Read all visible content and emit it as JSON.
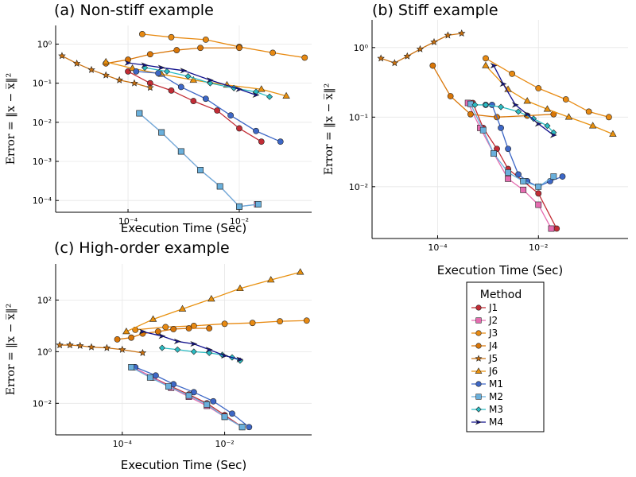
{
  "legend": {
    "title": "Method",
    "entries": [
      "J1",
      "J2",
      "J3",
      "J4",
      "J5",
      "J6",
      "M1",
      "M2",
      "M3",
      "M4"
    ]
  },
  "series_styles": {
    "J1": {
      "color": "#c22c35",
      "marker": "circle"
    },
    "J2": {
      "color": "#e56cb0",
      "marker": "square"
    },
    "J3": {
      "color": "#e88a12",
      "marker": "circle"
    },
    "J4": {
      "color": "#d97608",
      "marker": "circle"
    },
    "J5": {
      "color": "#c87010",
      "marker": "star"
    },
    "J6": {
      "color": "#e8900e",
      "marker": "triangle"
    },
    "M1": {
      "color": "#3d67c6",
      "marker": "circle"
    },
    "M2": {
      "color": "#6ab0dc",
      "marker": "square"
    },
    "M3": {
      "color": "#2bbcc3",
      "marker": "diamond"
    },
    "M4": {
      "color": "#10108c",
      "marker": "arrow"
    }
  },
  "chart_data": [
    {
      "type": "line",
      "title": "(a) Non-stiff example",
      "xlabel": "Execution Time (Sec)",
      "ylabel": "Error = ‖x − x̅‖²",
      "xscale": "log",
      "yscale": "log",
      "xlim": [
        5e-06,
        0.2
      ],
      "ylim": [
        5e-05,
        3
      ],
      "xticks": [
        0.0001,
        0.01
      ],
      "xtick_labels": [
        "10⁻⁴",
        "10⁻²"
      ],
      "yticks": [
        0.0001,
        0.001,
        0.01,
        0.1,
        1
      ],
      "ytick_labels": [
        "10⁻⁴",
        "10⁻³",
        "10⁻²",
        "10⁻¹",
        "10⁰"
      ],
      "grid": true,
      "series": [
        {
          "name": "J1",
          "x": [
            0.0001,
            0.00025,
            0.0006,
            0.0015,
            0.004,
            0.01,
            0.025
          ],
          "y": [
            0.2,
            0.1,
            0.065,
            0.035,
            0.02,
            0.007,
            0.0032
          ]
        },
        {
          "name": "J2",
          "x": [
            0.00016,
            0.0004,
            0.0009,
            0.002,
            0.0045,
            0.01,
            0.021
          ],
          "y": [
            0.017,
            0.0055,
            0.0018,
            0.0006,
            0.00023,
            7e-05,
            8e-05
          ]
        },
        {
          "name": "J3",
          "x": [
            0.00018,
            0.0006,
            0.0025,
            0.01,
            0.04,
            0.15
          ],
          "y": [
            1.8,
            1.5,
            1.3,
            0.85,
            0.6,
            0.45
          ]
        },
        {
          "name": "J4",
          "x": [
            4e-05,
            0.0001,
            0.00025,
            0.00075,
            0.002,
            0.01
          ],
          "y": [
            0.32,
            0.4,
            0.55,
            0.7,
            0.8,
            0.8
          ]
        },
        {
          "name": "J5",
          "x": [
            6.5e-06,
            1.2e-05,
            2.2e-05,
            4e-05,
            7e-05,
            0.00013,
            0.00025
          ],
          "y": [
            0.5,
            0.32,
            0.22,
            0.16,
            0.12,
            0.1,
            0.077
          ]
        },
        {
          "name": "J6",
          "x": [
            4e-05,
            0.00012,
            0.0004,
            0.0015,
            0.006,
            0.025,
            0.07
          ],
          "y": [
            0.35,
            0.24,
            0.17,
            0.12,
            0.09,
            0.07,
            0.047
          ]
        },
        {
          "name": "M1",
          "x": [
            0.00014,
            0.00035,
            0.0009,
            0.0025,
            0.007,
            0.02,
            0.055
          ],
          "y": [
            0.2,
            0.18,
            0.08,
            0.04,
            0.015,
            0.006,
            0.0032
          ]
        },
        {
          "name": "M2",
          "x": [
            0.00016,
            0.0004,
            0.0009,
            0.002,
            0.0045,
            0.01,
            0.022
          ],
          "y": [
            0.017,
            0.0055,
            0.0018,
            0.0006,
            0.00023,
            7e-05,
            8e-05
          ]
        },
        {
          "name": "M3",
          "x": [
            0.0002,
            0.0005,
            0.0012,
            0.003,
            0.008,
            0.02,
            0.035
          ],
          "y": [
            0.25,
            0.2,
            0.15,
            0.1,
            0.075,
            0.06,
            0.045
          ]
        },
        {
          "name": "M4",
          "x": [
            0.0001,
            0.0002,
            0.0004,
            0.001,
            0.003,
            0.01,
            0.02
          ],
          "y": [
            0.33,
            0.29,
            0.25,
            0.21,
            0.12,
            0.07,
            0.05
          ]
        }
      ]
    },
    {
      "type": "line",
      "title": "(b) Stiff example",
      "xlabel": "Execution Time (Sec)",
      "ylabel": "Error = ‖x − x̅‖²",
      "xscale": "log",
      "yscale": "log",
      "xlim": [
        5e-06,
        0.6
      ],
      "ylim": [
        0.0018,
        2.5
      ],
      "xticks": [
        0.0001,
        0.01
      ],
      "xtick_labels": [
        "10⁻⁴",
        "10⁻²"
      ],
      "yticks": [
        0.01,
        0.1,
        1
      ],
      "ytick_labels": [
        "10⁻²",
        "10⁻¹",
        "10⁰"
      ],
      "grid": true,
      "series": [
        {
          "name": "J1",
          "x": [
            0.0005,
            0.0008,
            0.0015,
            0.0025,
            0.005,
            0.01,
            0.023
          ],
          "y": [
            0.16,
            0.07,
            0.035,
            0.018,
            0.012,
            0.008,
            0.0025
          ]
        },
        {
          "name": "J2",
          "x": [
            0.0004,
            0.0007,
            0.0013,
            0.0025,
            0.005,
            0.01,
            0.018
          ],
          "y": [
            0.16,
            0.07,
            0.03,
            0.013,
            0.009,
            0.0055,
            0.0025
          ]
        },
        {
          "name": "J3",
          "x": [
            0.0009,
            0.003,
            0.01,
            0.035,
            0.1,
            0.25
          ],
          "y": [
            0.7,
            0.42,
            0.26,
            0.18,
            0.12,
            0.1
          ]
        },
        {
          "name": "J4",
          "x": [
            8e-05,
            0.00018,
            0.00045,
            0.0015,
            0.006,
            0.02
          ],
          "y": [
            0.55,
            0.2,
            0.11,
            0.1,
            0.105,
            0.11
          ]
        },
        {
          "name": "J5",
          "x": [
            7.5e-06,
            1.4e-05,
            2.5e-05,
            4.5e-05,
            8.5e-05,
            0.00016,
            0.0003
          ],
          "y": [
            0.7,
            0.6,
            0.75,
            0.95,
            1.2,
            1.5,
            1.6
          ]
        },
        {
          "name": "J6",
          "x": [
            0.0009,
            0.0025,
            0.006,
            0.015,
            0.04,
            0.12,
            0.3
          ],
          "y": [
            0.55,
            0.25,
            0.17,
            0.13,
            0.1,
            0.075,
            0.057
          ]
        },
        {
          "name": "M1",
          "x": [
            0.0009,
            0.0012,
            0.0018,
            0.0025,
            0.004,
            0.006,
            0.01,
            0.017,
            0.03
          ],
          "y": [
            0.15,
            0.15,
            0.07,
            0.035,
            0.015,
            0.012,
            0.01,
            0.012,
            0.014
          ]
        },
        {
          "name": "M2",
          "x": [
            0.00045,
            0.0008,
            0.0013,
            0.0025,
            0.005,
            0.01,
            0.02
          ],
          "y": [
            0.155,
            0.065,
            0.03,
            0.016,
            0.012,
            0.01,
            0.014
          ]
        },
        {
          "name": "M3",
          "x": [
            0.00055,
            0.0009,
            0.0018,
            0.004,
            0.008,
            0.015,
            0.02
          ],
          "y": [
            0.15,
            0.15,
            0.14,
            0.12,
            0.095,
            0.075,
            0.06
          ]
        },
        {
          "name": "M4",
          "x": [
            0.0013,
            0.002,
            0.0035,
            0.006,
            0.01,
            0.02
          ],
          "y": [
            0.55,
            0.3,
            0.15,
            0.11,
            0.08,
            0.055
          ]
        }
      ]
    },
    {
      "type": "line",
      "title": "(c) High-order example",
      "xlabel": "Execution Time (Sec)",
      "ylabel": "Error = ‖x − x̅‖²",
      "xscale": "log",
      "yscale": "log",
      "xlim": [
        5e-06,
        0.5
      ],
      "ylim": [
        0.0006,
        2500
      ],
      "xticks": [
        0.0001,
        0.01
      ],
      "xtick_labels": [
        "10⁻⁴",
        "10⁻²"
      ],
      "yticks": [
        0.01,
        1,
        100
      ],
      "ytick_labels": [
        "10⁻²",
        "10⁰",
        "10²"
      ],
      "grid": true,
      "series": [
        {
          "name": "J1",
          "x": [
            0.00016,
            0.0004,
            0.0009,
            0.002,
            0.0045,
            0.01,
            0.022
          ],
          "y": [
            0.25,
            0.1,
            0.045,
            0.022,
            0.01,
            0.0035,
            0.0012
          ]
        },
        {
          "name": "J2",
          "x": [
            0.00016,
            0.0004,
            0.0009,
            0.002,
            0.0045,
            0.01,
            0.022
          ],
          "y": [
            0.25,
            0.1,
            0.04,
            0.018,
            0.008,
            0.003,
            0.0012
          ]
        },
        {
          "name": "J3",
          "x": [
            0.00018,
            0.0007,
            0.0025,
            0.01,
            0.035,
            0.12,
            0.4
          ],
          "y": [
            7,
            9,
            10,
            12,
            13,
            15,
            16
          ]
        },
        {
          "name": "J4",
          "x": [
            8e-05,
            0.00015,
            0.00025,
            0.0005,
            0.001,
            0.002,
            0.005
          ],
          "y": [
            3,
            3.5,
            5,
            6,
            7.5,
            8,
            8
          ]
        },
        {
          "name": "J5",
          "x": [
            6e-06,
            9.5e-06,
            1.5e-05,
            2.5e-05,
            5e-05,
            0.0001,
            0.00025
          ],
          "y": [
            1.8,
            1.8,
            1.7,
            1.5,
            1.4,
            1.2,
            0.9
          ]
        },
        {
          "name": "J6",
          "x": [
            0.00012,
            0.0004,
            0.0015,
            0.0055,
            0.02,
            0.08,
            0.3
          ],
          "y": [
            6,
            18,
            45,
            110,
            280,
            600,
            1200
          ]
        },
        {
          "name": "M1",
          "x": [
            0.00018,
            0.00045,
            0.001,
            0.0025,
            0.006,
            0.014,
            0.03
          ],
          "y": [
            0.25,
            0.12,
            0.055,
            0.027,
            0.012,
            0.004,
            0.0012
          ]
        },
        {
          "name": "M2",
          "x": [
            0.00015,
            0.00035,
            0.0008,
            0.002,
            0.0045,
            0.01,
            0.022
          ],
          "y": [
            0.25,
            0.1,
            0.045,
            0.02,
            0.009,
            0.003,
            0.0012
          ]
        },
        {
          "name": "M3",
          "x": [
            0.0006,
            0.0012,
            0.0025,
            0.005,
            0.009,
            0.014,
            0.02
          ],
          "y": [
            1.4,
            1.2,
            1.0,
            0.9,
            0.75,
            0.6,
            0.45
          ]
        },
        {
          "name": "M4",
          "x": [
            0.00025,
            0.0006,
            0.0012,
            0.0025,
            0.005,
            0.01,
            0.02
          ],
          "y": [
            6,
            4,
            2.5,
            2,
            1.2,
            0.7,
            0.5
          ]
        }
      ]
    }
  ]
}
